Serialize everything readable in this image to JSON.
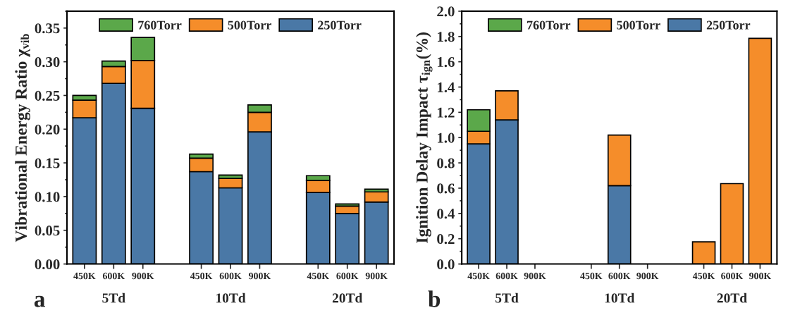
{
  "chart_data": [
    {
      "type": "bar",
      "stacked": true,
      "ylabel": "Vibrational Energy Ratio χ$_{vib}$",
      "categories": [
        "450K",
        "600K",
        "900K",
        null,
        "450K",
        "600K",
        "900K",
        null,
        "450K",
        "600K",
        "900K"
      ],
      "series": [
        {
          "name": "250Torr",
          "color": "#4a78a6",
          "values": [
            0.217,
            0.268,
            0.231,
            null,
            0.137,
            0.113,
            0.196,
            null,
            0.106,
            0.075,
            0.092
          ]
        },
        {
          "name": "500Torr",
          "color": "#f58d2a",
          "values": [
            0.026,
            0.025,
            0.071,
            null,
            0.02,
            0.014,
            0.029,
            null,
            0.018,
            0.011,
            0.015
          ]
        },
        {
          "name": "760Torr",
          "color": "#5ba84a",
          "values": [
            0.007,
            0.008,
            0.034,
            null,
            0.006,
            0.005,
            0.011,
            null,
            0.007,
            0.003,
            0.004
          ]
        }
      ],
      "ylim": [
        0,
        0.375
      ],
      "yticks": [
        {
          "value": 0,
          "label": "0.00"
        },
        0.05,
        {
          "value": 0.1,
          "label": "0.10"
        },
        0.15,
        {
          "value": 0.2,
          "label": "0.20"
        },
        0.25,
        {
          "value": 0.3,
          "label": "0.30"
        },
        0.35
      ],
      "legend": "top",
      "grid": false,
      "annotations": [
        "5Td",
        "10Td",
        "20Td",
        "a"
      ]
    },
    {
      "type": "bar",
      "stacked": true,
      "ylabel": "Ignition Delay Impact τ$_{ign}$(%)",
      "categories": [
        "450K",
        "600K",
        "900K",
        null,
        "450K",
        "600K",
        "900K",
        null,
        "450K",
        "600K",
        "900K"
      ],
      "series": [
        {
          "name": "250Torr",
          "color": "#4a78a6",
          "values": [
            0.95,
            1.14,
            null,
            null,
            null,
            0.62,
            null,
            null,
            null,
            null,
            null
          ]
        },
        {
          "name": "500Torr",
          "color": "#f58d2a",
          "values": [
            0.1,
            0.23,
            null,
            null,
            null,
            0.4,
            null,
            null,
            0.175,
            0.636,
            1.785
          ]
        },
        {
          "name": "760Torr",
          "color": "#5ba84a",
          "values": [
            0.17,
            null,
            null,
            null,
            null,
            null,
            null,
            null,
            null,
            null,
            null
          ]
        }
      ],
      "ylim": [
        0,
        2.0
      ],
      "yticks": [
        {
          "value": 0,
          "label": "0.0"
        },
        0.2,
        0.4,
        0.6,
        0.8,
        {
          "value": 1,
          "label": "1.0"
        },
        1.2,
        1.4,
        1.6,
        1.8,
        {
          "value": 2,
          "label": "2.0"
        }
      ],
      "legend": "top",
      "grid": false,
      "annotations": [
        "5Td",
        "10Td",
        "20Td",
        "b"
      ]
    }
  ]
}
